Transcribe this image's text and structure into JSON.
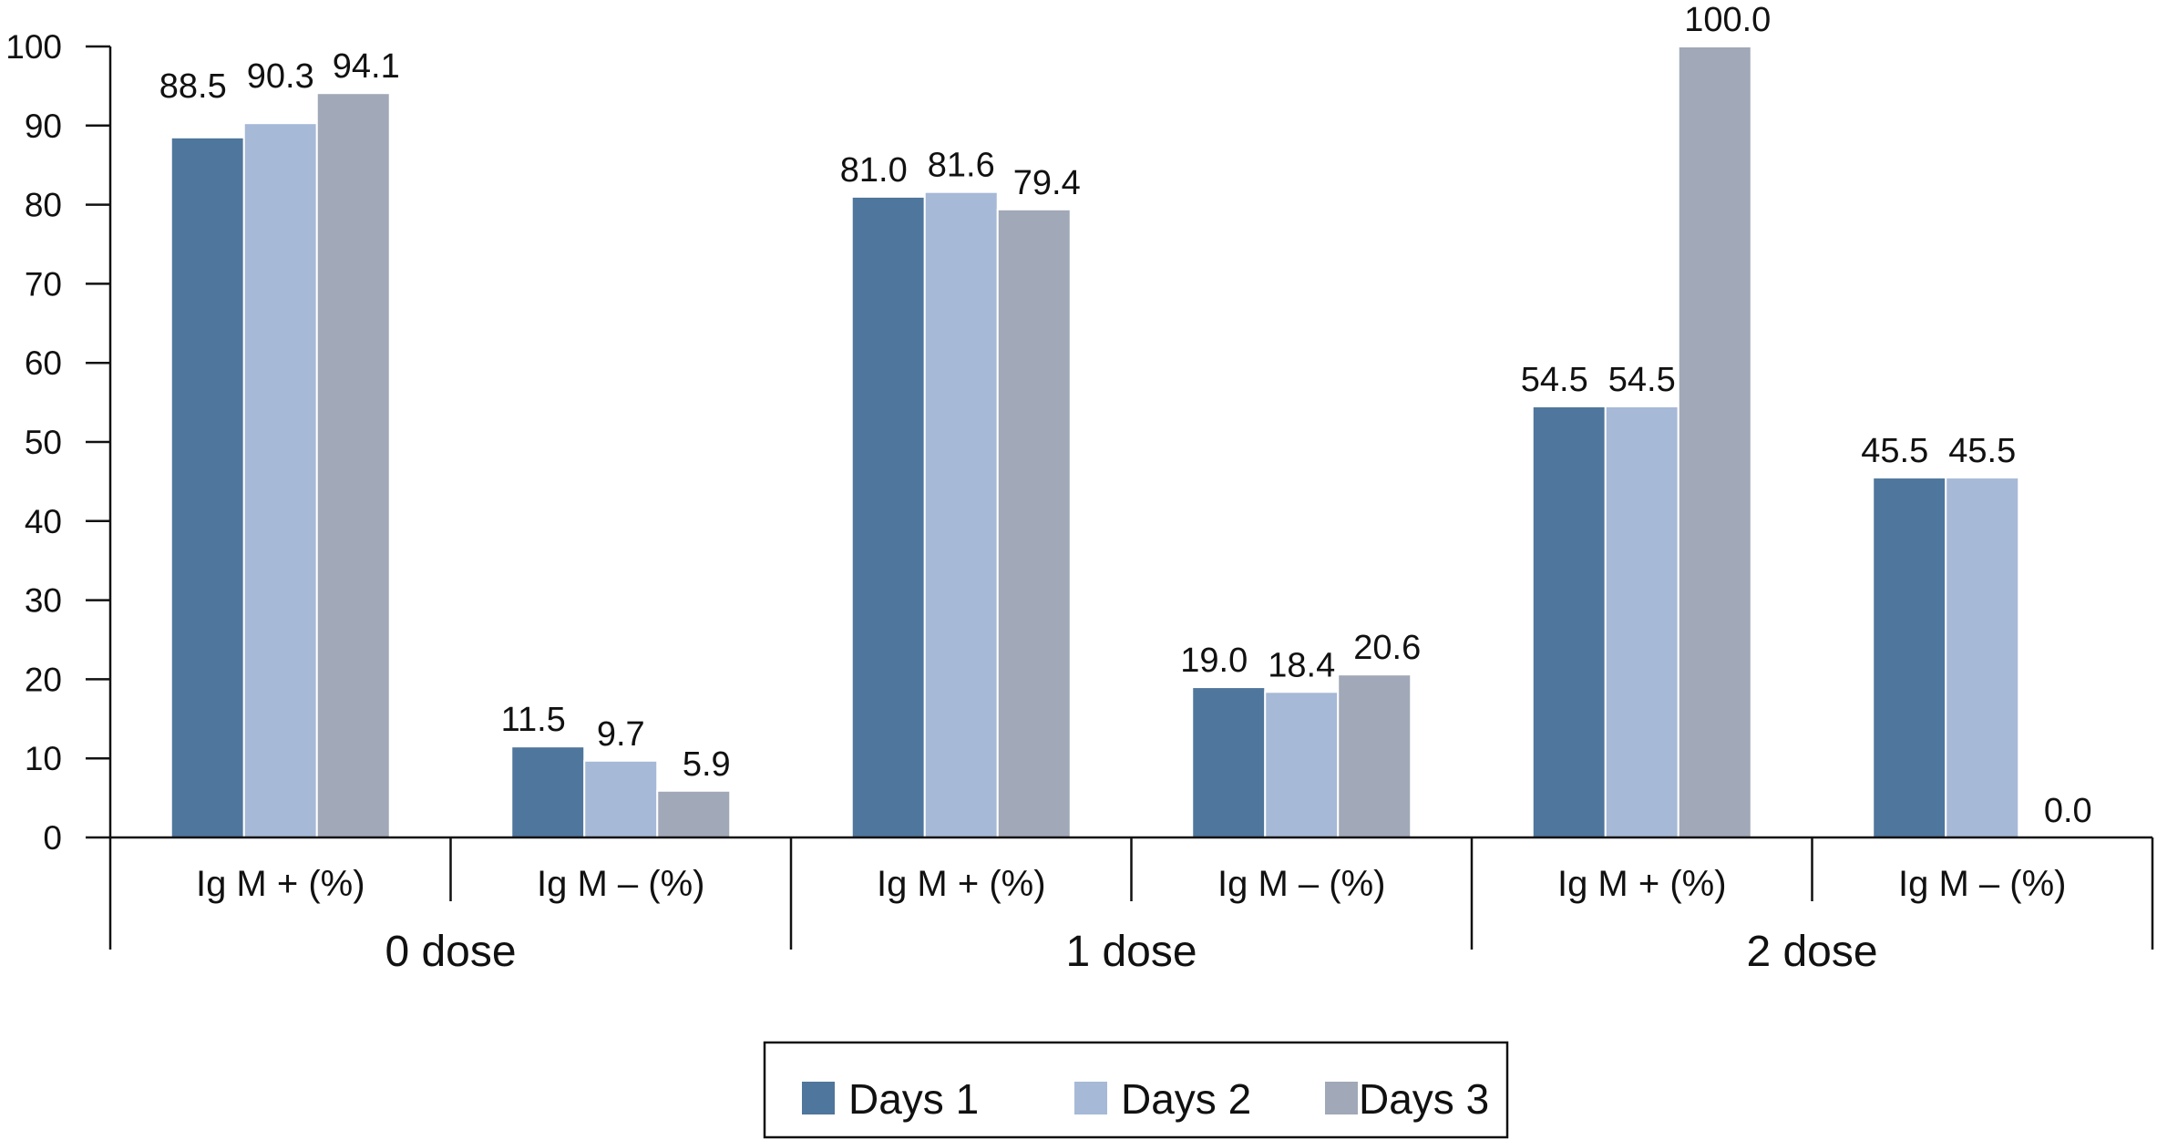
{
  "chart_data": {
    "type": "bar",
    "groups": [
      "0 dose",
      "1 dose",
      "2 dose"
    ],
    "categories": [
      "Ig M + (%)",
      "Ig M – (%)",
      "Ig M + (%)",
      "Ig M – (%)",
      "Ig M + (%)",
      "Ig M – (%)"
    ],
    "series": [
      {
        "name": "Days 1",
        "color": "#4f769c",
        "values": [
          88.5,
          11.5,
          81.0,
          19.0,
          54.5,
          45.5
        ],
        "labels": [
          "88.5",
          "11.5",
          "81.0",
          "19.0",
          "54.5",
          "45.5"
        ]
      },
      {
        "name": "Days 2",
        "color": "#a6b9d7",
        "values": [
          90.3,
          9.7,
          81.6,
          18.4,
          54.5,
          45.5
        ],
        "labels": [
          "90.3",
          "9.7",
          "81.6",
          "18.4",
          "54.5",
          "45.5"
        ]
      },
      {
        "name": "Days 3",
        "color": "#a1a8b7",
        "values": [
          94.1,
          5.9,
          79.4,
          20.6,
          100.0,
          0.0
        ],
        "labels": [
          "94.1",
          "5.9",
          "79.4",
          "20.6",
          "100.0",
          "0.0"
        ]
      }
    ],
    "ylim": [
      0,
      100
    ],
    "yticks": [
      0,
      10,
      20,
      30,
      40,
      50,
      60,
      70,
      80,
      90,
      100
    ],
    "grid": false,
    "legend": {
      "position": "bottom",
      "boxed": true
    }
  }
}
